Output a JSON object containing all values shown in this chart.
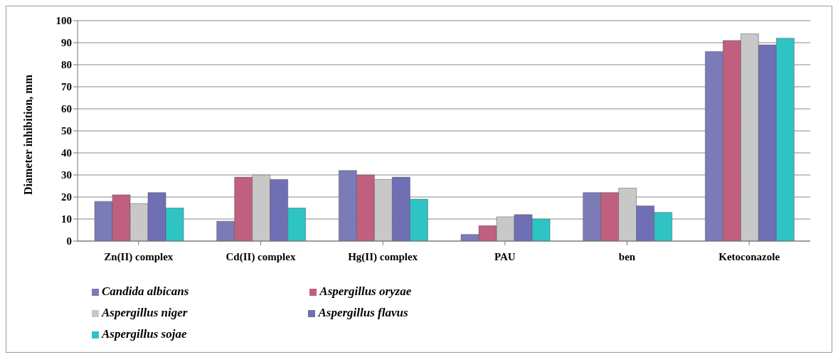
{
  "chart_data": {
    "type": "bar",
    "ylabel": "Diameter inhibition, mm",
    "categories": [
      "Zn(II) complex",
      "Cd(II) complex",
      "Hg(II) complex",
      "PAU",
      "ben",
      "Ketoconazole"
    ],
    "series": [
      {
        "name": "Candida albicans",
        "color": "#7b7bb8",
        "values": [
          18,
          9,
          32,
          3,
          22,
          86
        ]
      },
      {
        "name": "Aspergillus oryzae",
        "color": "#c0607e",
        "values": [
          21,
          29,
          30,
          7,
          22,
          91
        ]
      },
      {
        "name": "Aspergillus niger",
        "color": "#c8c8c8",
        "values": [
          17,
          30,
          28,
          11,
          24,
          94
        ]
      },
      {
        "name": "Aspergillus flavus",
        "color": "#6f6fb5",
        "values": [
          22,
          28,
          29,
          12,
          16,
          89
        ]
      },
      {
        "name": "Aspergillus sojae",
        "color": "#2ec4c4",
        "values": [
          15,
          15,
          19,
          10,
          13,
          92
        ]
      }
    ],
    "ylim": [
      0,
      100
    ],
    "yticks": [
      0,
      10,
      20,
      30,
      40,
      50,
      60,
      70,
      80,
      90,
      100
    ],
    "grid": "y",
    "legend": "bottom"
  }
}
